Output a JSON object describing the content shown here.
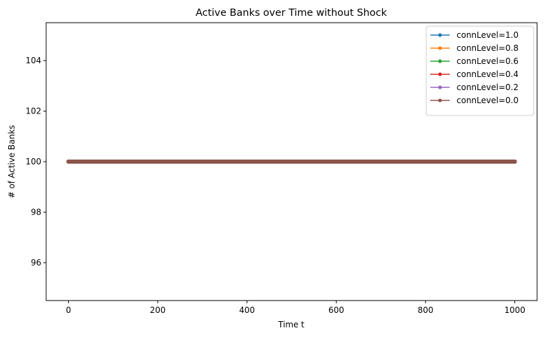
{
  "chart_data": {
    "type": "line",
    "title": "Active Banks over Time without Shock",
    "xlabel": "Time t",
    "ylabel": "# of Active Banks",
    "xlim": [
      -50,
      1050
    ],
    "ylim": [
      94.5,
      105.5
    ],
    "xticks": [
      0,
      200,
      400,
      600,
      800,
      1000
    ],
    "yticks": [
      96,
      98,
      100,
      102,
      104
    ],
    "grid": false,
    "legend_position": "top-right",
    "x_range": [
      0,
      1000
    ],
    "series": [
      {
        "name": "connLevel=1.0",
        "color": "#1f77b4",
        "value": 100
      },
      {
        "name": "connLevel=0.8",
        "color": "#ff7f0e",
        "value": 100
      },
      {
        "name": "connLevel=0.6",
        "color": "#2ca02c",
        "value": 100
      },
      {
        "name": "connLevel=0.4",
        "color": "#d62728",
        "value": 100
      },
      {
        "name": "connLevel=0.2",
        "color": "#9467bd",
        "value": 100
      },
      {
        "name": "connLevel=0.0",
        "color": "#8c564b",
        "value": 100
      }
    ]
  }
}
